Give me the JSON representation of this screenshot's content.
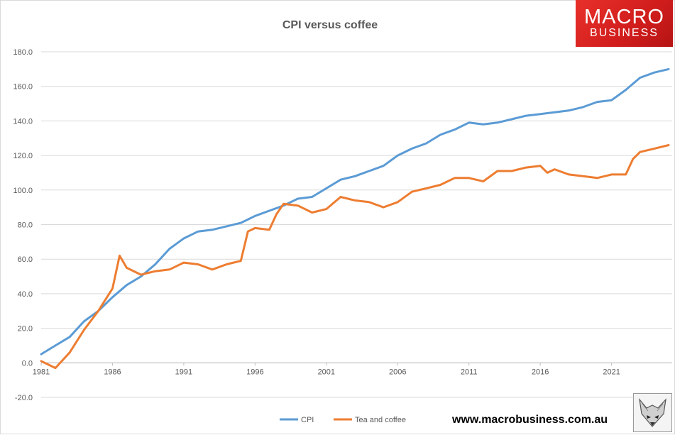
{
  "brand": {
    "logo_line1": "MACRO",
    "logo_line2": "BUSINESS",
    "website": "www.macrobusiness.com.au",
    "logo_color": "#d7201f"
  },
  "chart_data": {
    "type": "line",
    "title": "CPI versus coffee",
    "xlabel": "",
    "ylabel": "",
    "ylim": [
      -20,
      180
    ],
    "xlim": [
      1981,
      2025.25
    ],
    "yticks": [
      "180.0",
      "160.0",
      "140.0",
      "120.0",
      "100.0",
      "80.0",
      "60.0",
      "40.0",
      "20.0",
      "0.0",
      "-20.0"
    ],
    "xticks": [
      "1981",
      "1986",
      "1991",
      "1996",
      "2001",
      "2006",
      "2011",
      "2016",
      "2021"
    ],
    "grid": true,
    "legend_position": "bottom",
    "series": [
      {
        "name": "CPI",
        "color": "#5b9bd5",
        "points": [
          [
            1981,
            5
          ],
          [
            1982,
            10
          ],
          [
            1983,
            15
          ],
          [
            1984,
            24
          ],
          [
            1985,
            30
          ],
          [
            1986,
            38
          ],
          [
            1987,
            45
          ],
          [
            1988,
            50
          ],
          [
            1989,
            57
          ],
          [
            1990,
            66
          ],
          [
            1991,
            72
          ],
          [
            1992,
            76
          ],
          [
            1993,
            77
          ],
          [
            1994,
            79
          ],
          [
            1995,
            81
          ],
          [
            1996,
            85
          ],
          [
            1997,
            88
          ],
          [
            1998,
            91
          ],
          [
            1999,
            95
          ],
          [
            2000,
            96
          ],
          [
            2001,
            101
          ],
          [
            2002,
            106
          ],
          [
            2003,
            108
          ],
          [
            2004,
            111
          ],
          [
            2005,
            114
          ],
          [
            2006,
            120
          ],
          [
            2007,
            124
          ],
          [
            2008,
            127
          ],
          [
            2009,
            132
          ],
          [
            2010,
            135
          ],
          [
            2011,
            139
          ],
          [
            2012,
            138
          ],
          [
            2013,
            139
          ],
          [
            2014,
            141
          ],
          [
            2015,
            143
          ],
          [
            2016,
            144
          ],
          [
            2017,
            145
          ],
          [
            2018,
            146
          ],
          [
            2019,
            148
          ],
          [
            2020,
            151
          ],
          [
            2021,
            152
          ],
          [
            2022,
            158
          ],
          [
            2023,
            165
          ],
          [
            2024,
            168
          ],
          [
            2025,
            170
          ]
        ]
      },
      {
        "name": "Tea and coffee",
        "color": "#ed7d31",
        "points": [
          [
            1981,
            1
          ],
          [
            1982,
            -3
          ],
          [
            1983,
            6
          ],
          [
            1984,
            19
          ],
          [
            1985,
            30
          ],
          [
            1986,
            43
          ],
          [
            1986.5,
            62
          ],
          [
            1987,
            55
          ],
          [
            1988,
            51
          ],
          [
            1989,
            53
          ],
          [
            1990,
            54
          ],
          [
            1991,
            58
          ],
          [
            1992,
            57
          ],
          [
            1993,
            54
          ],
          [
            1994,
            57
          ],
          [
            1995,
            59
          ],
          [
            1995.5,
            76
          ],
          [
            1996,
            78
          ],
          [
            1997,
            77
          ],
          [
            1997.5,
            86
          ],
          [
            1998,
            92
          ],
          [
            1999,
            91
          ],
          [
            2000,
            87
          ],
          [
            2001,
            89
          ],
          [
            2002,
            96
          ],
          [
            2003,
            94
          ],
          [
            2004,
            93
          ],
          [
            2005,
            90
          ],
          [
            2006,
            93
          ],
          [
            2007,
            99
          ],
          [
            2008,
            101
          ],
          [
            2009,
            103
          ],
          [
            2010,
            107
          ],
          [
            2011,
            107
          ],
          [
            2012,
            105
          ],
          [
            2013,
            111
          ],
          [
            2014,
            111
          ],
          [
            2015,
            113
          ],
          [
            2016,
            114
          ],
          [
            2016.5,
            110
          ],
          [
            2017,
            112
          ],
          [
            2018,
            109
          ],
          [
            2019,
            108
          ],
          [
            2020,
            107
          ],
          [
            2021,
            109
          ],
          [
            2022,
            109
          ],
          [
            2022.5,
            118
          ],
          [
            2023,
            122
          ],
          [
            2024,
            124
          ],
          [
            2025,
            126
          ]
        ]
      }
    ]
  }
}
